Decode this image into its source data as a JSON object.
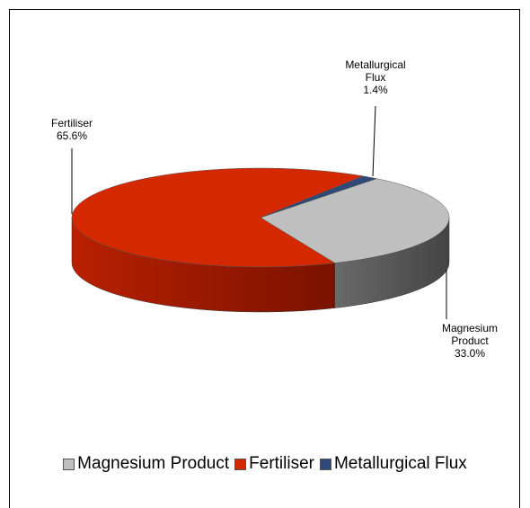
{
  "chart_data": {
    "type": "pie",
    "categories": [
      "Magnesium Product",
      "Fertiliser",
      "Metallurgical Flux"
    ],
    "values": [
      33.0,
      65.6,
      1.4
    ],
    "value_labels": [
      "33.0%",
      "65.6%",
      "1.4%"
    ],
    "colors": [
      "#bfbfbf",
      "#d42800",
      "#2f4a78"
    ],
    "legend": "bottom"
  }
}
